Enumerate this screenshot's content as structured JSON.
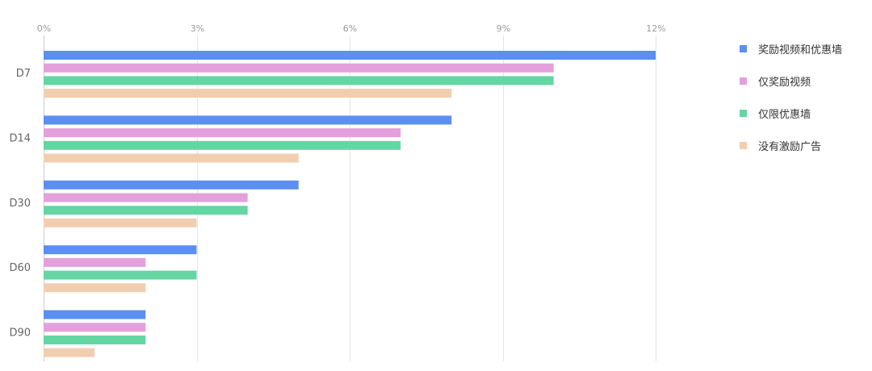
{
  "chart_data": {
    "type": "bar",
    "orientation": "horizontal",
    "categories": [
      "D7",
      "D14",
      "D30",
      "D60",
      "D90"
    ],
    "x_ticks": [
      "0%",
      "3%",
      "6%",
      "9%",
      "12%"
    ],
    "xlim": [
      0,
      12
    ],
    "unit": "%",
    "grid": "vertical",
    "legend_position": "right",
    "series": [
      {
        "name": "奖励视频和优惠墙",
        "color": "#5b8ff0",
        "values": [
          12,
          8,
          5,
          3,
          2
        ]
      },
      {
        "name": "仅奖励视频",
        "color": "#e3a0dc",
        "values": [
          10,
          7,
          4,
          2,
          2
        ]
      },
      {
        "name": "仅限优惠墙",
        "color": "#64d6a3",
        "values": [
          10,
          7,
          4,
          3,
          2
        ]
      },
      {
        "name": "没有激励广告",
        "color": "#f2ceb0",
        "values": [
          8,
          5,
          3,
          2,
          1
        ]
      }
    ]
  }
}
